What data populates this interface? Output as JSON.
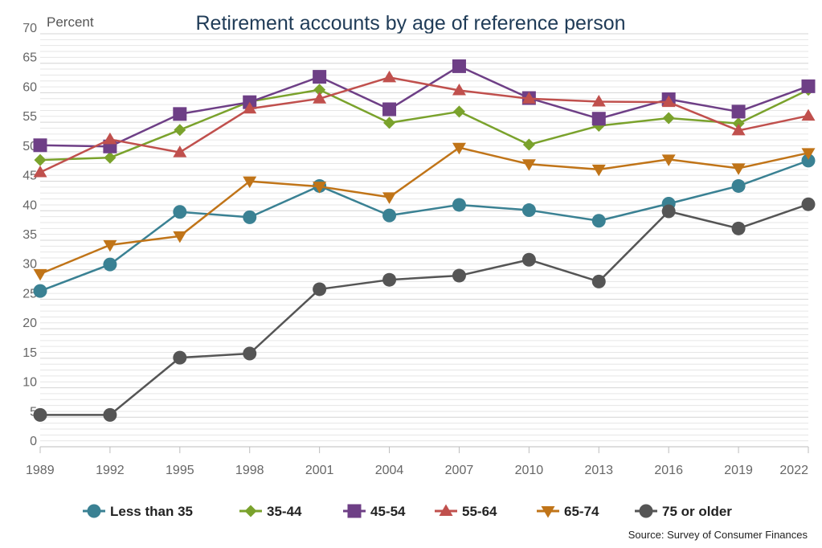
{
  "chart_data": {
    "type": "line",
    "title": "Retirement accounts by age of reference person",
    "ylabel": "Percent",
    "xlabel": "",
    "ylim": [
      0,
      70
    ],
    "yticks": [
      0,
      5,
      10,
      15,
      20,
      25,
      30,
      35,
      40,
      45,
      50,
      55,
      60,
      65,
      70
    ],
    "grid": true,
    "legend_position": "bottom",
    "source": "Source: Survey of Consumer Finances",
    "categories": [
      "1989",
      "1992",
      "1995",
      "1998",
      "2001",
      "2004",
      "2007",
      "2010",
      "2013",
      "2016",
      "2019",
      "2022"
    ],
    "series": [
      {
        "name": "Less than 35",
        "marker": "circle",
        "color": "#3a8193",
        "values": [
          26.4,
          30.9,
          39.8,
          38.9,
          44.2,
          39.2,
          41.0,
          40.1,
          38.3,
          41.2,
          44.2,
          48.5
        ]
      },
      {
        "name": "35-44",
        "marker": "diamond",
        "color": "#7aa22c",
        "values": [
          48.6,
          49.0,
          53.7,
          58.5,
          60.5,
          54.9,
          56.8,
          51.2,
          54.4,
          55.7,
          54.8,
          60.5
        ]
      },
      {
        "name": "45-54",
        "marker": "square",
        "color": "#6e3f86",
        "values": [
          51.1,
          50.9,
          56.4,
          58.4,
          62.7,
          57.2,
          64.5,
          59.1,
          55.6,
          58.9,
          56.8,
          61.1
        ]
      },
      {
        "name": "55-64",
        "marker": "triangle-up",
        "color": "#c0504d",
        "values": [
          46.5,
          52.1,
          49.9,
          57.3,
          59.0,
          62.6,
          60.4,
          59.0,
          58.5,
          58.4,
          53.6,
          56.1
        ]
      },
      {
        "name": "65-74",
        "marker": "triangle-down",
        "color": "#c07418",
        "values": [
          29.3,
          34.2,
          35.7,
          45.0,
          44.1,
          42.3,
          50.7,
          47.9,
          47.0,
          48.7,
          47.2,
          49.8
        ]
      },
      {
        "name": "75 or older",
        "marker": "circle",
        "color": "#555555",
        "values": [
          5.4,
          5.4,
          15.1,
          15.8,
          26.7,
          28.3,
          29.0,
          31.7,
          28.0,
          39.9,
          37.0,
          41.1
        ]
      }
    ]
  }
}
